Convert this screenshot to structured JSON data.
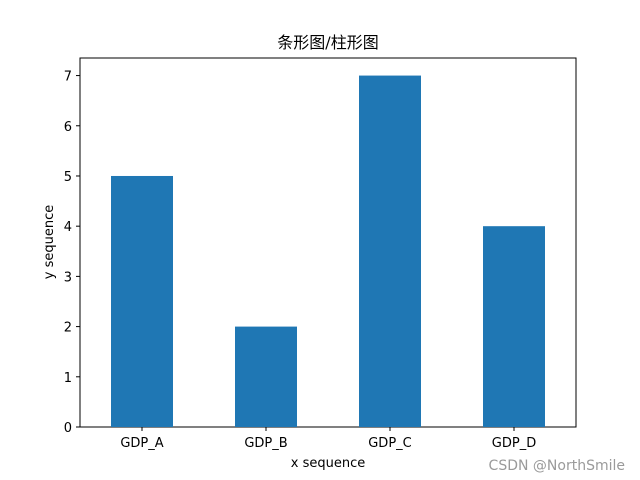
{
  "chart_data": {
    "type": "bar",
    "title": "条形图/柱形图",
    "xlabel": "x sequence",
    "ylabel": "y sequence",
    "categories": [
      "GDP_A",
      "GDP_B",
      "GDP_C",
      "GDP_D"
    ],
    "values": [
      5,
      2,
      7,
      4
    ],
    "ylim": [
      0,
      7.35
    ],
    "yticks": [
      "0",
      "1",
      "2",
      "3",
      "4",
      "5",
      "6",
      "7"
    ],
    "grid": false,
    "legend": "none",
    "bar_color": "#1f77b4"
  },
  "watermark": "CSDN @NorthSmile"
}
